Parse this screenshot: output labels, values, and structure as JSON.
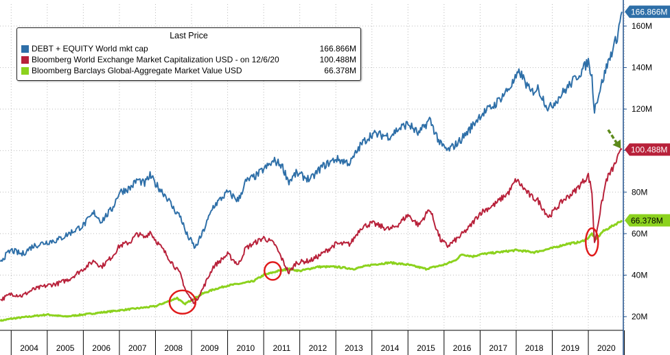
{
  "chart_data": {
    "type": "line",
    "title": "",
    "xlabel": "",
    "ylabel": "",
    "x_ticks": [
      "2004",
      "2005",
      "2006",
      "2007",
      "2008",
      "2009",
      "2010",
      "2011",
      "2012",
      "2013",
      "2014",
      "2015",
      "2016",
      "2017",
      "2018",
      "2019",
      "2020"
    ],
    "y_ticks": [
      "20M",
      "40M",
      "60M",
      "80M",
      "100M",
      "120M",
      "140M",
      "160M"
    ],
    "ylim": [
      14,
      176
    ],
    "xlim": [
      2003.7,
      2021.0
    ],
    "grid": true,
    "legend": {
      "title": "Last Price",
      "placement": "top-left"
    },
    "series": [
      {
        "name": "DEBT + EQUITY World mkt cap",
        "legend_value": "166.866M",
        "color": "#2e6fa8",
        "last_label": "166.866M",
        "x": [
          2003.7,
          2004.0,
          2004.3,
          2004.6,
          2005.0,
          2005.3,
          2005.6,
          2006.0,
          2006.3,
          2006.5,
          2006.8,
          2007.0,
          2007.3,
          2007.5,
          2007.7,
          2007.85,
          2008.0,
          2008.3,
          2008.5,
          2008.7,
          2008.85,
          2009.0,
          2009.1,
          2009.3,
          2009.6,
          2010.0,
          2010.3,
          2010.5,
          2010.8,
          2011.0,
          2011.3,
          2011.5,
          2011.7,
          2011.9,
          2012.3,
          2012.6,
          2013.0,
          2013.4,
          2013.7,
          2014.0,
          2014.5,
          2014.7,
          2015.0,
          2015.3,
          2015.6,
          2015.9,
          2016.1,
          2016.4,
          2016.7,
          2017.0,
          2017.4,
          2017.8,
          2018.0,
          2018.1,
          2018.4,
          2018.6,
          2018.9,
          2019.0,
          2019.3,
          2019.6,
          2019.8,
          2020.0,
          2020.1,
          2020.17,
          2020.3,
          2020.5,
          2020.7,
          2020.8,
          2020.93
        ],
        "values": [
          47,
          52,
          50,
          54,
          56,
          57,
          60,
          64,
          70,
          66,
          72,
          80,
          82,
          86,
          84,
          88,
          84,
          78,
          72,
          68,
          60,
          56,
          53,
          60,
          73,
          80,
          76,
          85,
          88,
          91,
          95,
          93,
          85,
          89,
          86,
          92,
          96,
          94,
          103,
          108,
          107,
          110,
          113,
          108,
          115,
          103,
          100,
          104,
          110,
          117,
          122,
          130,
          135,
          138,
          128,
          130,
          120,
          122,
          128,
          134,
          138,
          143,
          135,
          120,
          128,
          140,
          150,
          155,
          166.9
        ]
      },
      {
        "name": "Bloomberg World Exchange Market Capitalization USD -  on 12/6/20",
        "legend_value": "100.488M",
        "color": "#b8213a",
        "last_label": "100.488M",
        "x": [
          2003.7,
          2004.0,
          2004.3,
          2004.6,
          2005.0,
          2005.3,
          2005.6,
          2006.0,
          2006.3,
          2006.5,
          2006.8,
          2007.0,
          2007.3,
          2007.5,
          2007.7,
          2007.85,
          2008.0,
          2008.3,
          2008.5,
          2008.7,
          2008.85,
          2009.0,
          2009.1,
          2009.3,
          2009.6,
          2010.0,
          2010.3,
          2010.5,
          2010.8,
          2011.0,
          2011.3,
          2011.5,
          2011.7,
          2011.9,
          2012.3,
          2012.6,
          2013.0,
          2013.4,
          2013.7,
          2014.0,
          2014.5,
          2014.7,
          2015.0,
          2015.3,
          2015.6,
          2015.9,
          2016.1,
          2016.4,
          2016.7,
          2017.0,
          2017.4,
          2017.8,
          2018.0,
          2018.1,
          2018.4,
          2018.6,
          2018.9,
          2019.0,
          2019.3,
          2019.6,
          2019.8,
          2020.0,
          2020.1,
          2020.17,
          2020.3,
          2020.5,
          2020.7,
          2020.8,
          2020.93
        ],
        "values": [
          28,
          31,
          30,
          33,
          35,
          36,
          38,
          43,
          47,
          44,
          49,
          54,
          56,
          60,
          58,
          61,
          57,
          50,
          45,
          40,
          32,
          28,
          27,
          33,
          44,
          50,
          45,
          53,
          56,
          58,
          55,
          48,
          41,
          46,
          47,
          50,
          55,
          55,
          63,
          65,
          62,
          64,
          69,
          64,
          72,
          57,
          54,
          58,
          63,
          70,
          74,
          80,
          86,
          84,
          78,
          76,
          68,
          70,
          76,
          80,
          84,
          88,
          80,
          55,
          68,
          86,
          92,
          96,
          100.5
        ]
      },
      {
        "name": "Bloomberg Barclays Global-Aggregate Market Value USD",
        "legend_value": "66.378M",
        "color": "#8cd21e",
        "last_label": "66.378M",
        "x": [
          2003.7,
          2004.0,
          2004.5,
          2005.0,
          2005.5,
          2006.0,
          2006.5,
          2007.0,
          2007.5,
          2008.0,
          2008.3,
          2008.6,
          2008.8,
          2009.0,
          2009.3,
          2009.6,
          2010.0,
          2010.4,
          2010.7,
          2011.0,
          2011.4,
          2011.7,
          2012.0,
          2012.5,
          2013.0,
          2013.5,
          2014.0,
          2014.5,
          2015.0,
          2015.5,
          2016.0,
          2016.3,
          2016.5,
          2016.8,
          2017.0,
          2017.5,
          2018.0,
          2018.5,
          2019.0,
          2019.4,
          2019.8,
          2020.0,
          2020.1,
          2020.2,
          2020.4,
          2020.6,
          2020.8,
          2020.93
        ],
        "values": [
          18,
          19,
          20,
          21,
          20,
          21,
          22,
          23,
          24,
          25,
          27,
          29,
          26,
          28,
          31,
          33,
          35,
          36,
          37,
          40,
          42,
          43,
          42,
          44,
          44,
          43,
          45,
          46,
          45,
          43,
          45,
          47,
          50,
          49,
          50,
          51,
          52,
          51,
          53,
          55,
          56,
          58,
          60,
          57,
          61,
          63,
          65,
          66.4
        ]
      }
    ],
    "annotations": {
      "circles": [
        {
          "x": 2008.75,
          "y": 27,
          "shape": "circle"
        },
        {
          "x": 2011.25,
          "y": 42,
          "shape": "circle"
        },
        {
          "x": 2020.1,
          "y": 56,
          "shape": "tall-ellipse"
        }
      ],
      "arrow": {
        "from": [
          2020.55,
          110
        ],
        "to": [
          2020.9,
          101
        ],
        "color": "#5d8a1b",
        "style": "dashed"
      }
    },
    "colors": {
      "grid": "#b9b9b9",
      "axis": "#1d4f8c",
      "frame": "#000000"
    }
  }
}
